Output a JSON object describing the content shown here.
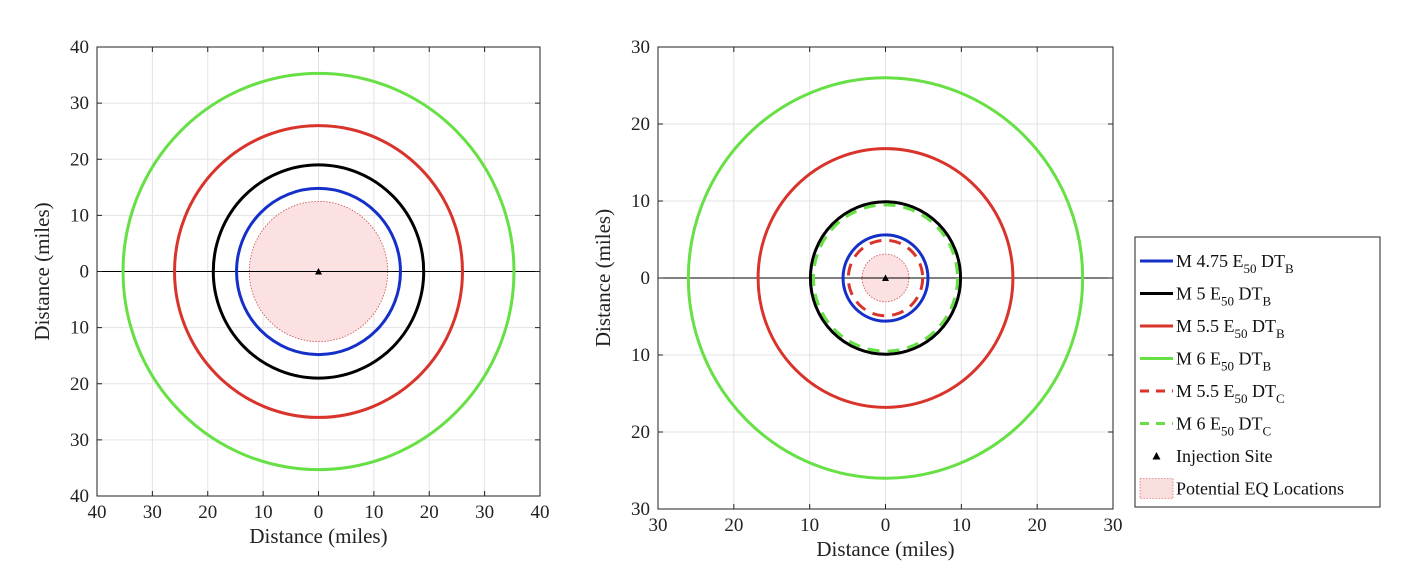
{
  "chart_data": [
    {
      "type": "line",
      "xlabel": "Distance (miles)",
      "ylabel": "Distance (miles)",
      "xlim": [
        -40,
        40
      ],
      "ylim": [
        -40,
        40
      ],
      "xticks": [
        -40,
        -30,
        -20,
        -10,
        0,
        10,
        20,
        30,
        40
      ],
      "xtick_labels": [
        "40",
        "30",
        "20",
        "10",
        "0",
        "10",
        "20",
        "30",
        "40"
      ],
      "yticks": [
        40,
        30,
        20,
        10,
        0,
        -10,
        -20,
        -30,
        -40
      ],
      "ytick_labels": [
        "40",
        "30",
        "20",
        "10",
        "0",
        "10",
        "20",
        "30",
        "40"
      ],
      "grid": true,
      "horizontal_line_y": 0,
      "potential_region_radius": 12.5,
      "injection_site": [
        0,
        0
      ],
      "series": [
        {
          "key": "m475_b",
          "radius": 14.8,
          "color": "#1530c8",
          "dash": "solid"
        },
        {
          "key": "m5_b",
          "radius": 19.0,
          "color": "#000000",
          "dash": "solid"
        },
        {
          "key": "m55_b",
          "radius": 26.0,
          "color": "#d9342b",
          "dash": "solid"
        },
        {
          "key": "m6_b",
          "radius": 35.3,
          "color": "#66e045",
          "dash": "solid"
        }
      ]
    },
    {
      "type": "line",
      "xlabel": "Distance (miles)",
      "ylabel": "Distance (miles)",
      "xlim": [
        -30,
        30
      ],
      "ylim": [
        -30,
        30
      ],
      "xticks": [
        -30,
        -20,
        -10,
        0,
        10,
        20,
        30
      ],
      "xtick_labels": [
        "30",
        "20",
        "10",
        "0",
        "10",
        "20",
        "30"
      ],
      "yticks": [
        30,
        20,
        10,
        0,
        -10,
        -20,
        -30
      ],
      "ytick_labels": [
        "30",
        "20",
        "10",
        "0",
        "10",
        "20",
        "30"
      ],
      "grid": true,
      "horizontal_line_y": 0,
      "potential_region_radius": 3.1,
      "injection_site": [
        0,
        0
      ],
      "series": [
        {
          "key": "m475_b",
          "radius": 5.6,
          "color": "#1530c8",
          "dash": "solid"
        },
        {
          "key": "m5_b",
          "radius": 9.9,
          "color": "#000000",
          "dash": "solid"
        },
        {
          "key": "m55_b",
          "radius": 16.8,
          "color": "#d9342b",
          "dash": "solid"
        },
        {
          "key": "m6_b",
          "radius": 26.0,
          "color": "#66e045",
          "dash": "solid"
        },
        {
          "key": "m55_c",
          "radius": 4.9,
          "color": "#d9342b",
          "dash": "dashed"
        },
        {
          "key": "m6_c",
          "radius": 9.5,
          "color": "#66e045",
          "dash": "dashed"
        }
      ]
    }
  ],
  "legend": {
    "placement": "right",
    "entries": [
      {
        "pre": "M 4.75 E",
        "sub1": "50",
        "mid": " DT",
        "sub2": "B",
        "color": "#1530c8",
        "style": "solid"
      },
      {
        "pre": "M 5 E",
        "sub1": "50",
        "mid": " DT",
        "sub2": "B",
        "color": "#000000",
        "style": "solid"
      },
      {
        "pre": "M 5.5 E",
        "sub1": "50",
        "mid": " DT",
        "sub2": "B",
        "color": "#d9342b",
        "style": "solid"
      },
      {
        "pre": "M 6 E",
        "sub1": "50",
        "mid": " DT",
        "sub2": "B",
        "color": "#66e045",
        "style": "solid"
      },
      {
        "pre": "M 5.5 E",
        "sub1": "50",
        "mid": " DT",
        "sub2": "C",
        "color": "#d9342b",
        "style": "dashed"
      },
      {
        "pre": "M 6 E",
        "sub1": "50",
        "mid": " DT",
        "sub2": "C",
        "color": "#66e045",
        "style": "dashed"
      },
      {
        "pre": "Injection Site",
        "sub1": "",
        "mid": "",
        "sub2": "",
        "color": "#000000",
        "style": "marker"
      },
      {
        "pre": "Potential EQ Locations",
        "sub1": "",
        "mid": "",
        "sub2": "",
        "color": "#f9dede",
        "style": "patch"
      }
    ]
  },
  "colors": {
    "grid": "#e3e3e3",
    "region_fill": "#fbe1e1",
    "region_edge": "#c94a4a",
    "axis": "#222222"
  }
}
